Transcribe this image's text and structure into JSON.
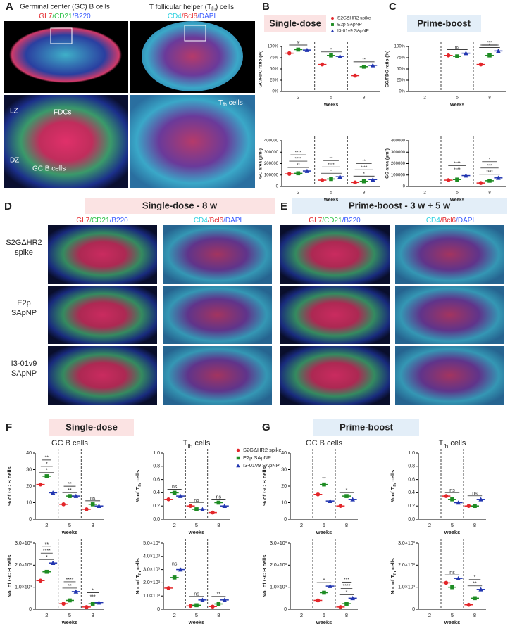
{
  "panel_labels": [
    "A",
    "B",
    "C",
    "D",
    "E",
    "F",
    "G"
  ],
  "panel_a": {
    "left_title": "Germinal center (GC) B cells",
    "left_stain": [
      "GL7",
      "/CD21",
      "/B220"
    ],
    "right_title": [
      "T follicular helper (T",
      "fh",
      ") cells"
    ],
    "right_stain": [
      "CD4",
      "/Bcl6",
      "/DAPI"
    ],
    "zones": [
      "LZ",
      "DZ"
    ],
    "labels": [
      "FDCs",
      "GC B cells"
    ],
    "tfh_label": [
      "T",
      "fh",
      " cells"
    ]
  },
  "sections": {
    "B": "Single-dose",
    "C": "Prime-boost",
    "F": "Single-dose",
    "G": "Prime-boost"
  },
  "panel_d": {
    "title": "Single-dose - 8 w"
  },
  "panel_e": {
    "title": "Prime-boost - 3 w + 5 w"
  },
  "row_labels": [
    [
      "S2GΔHR2",
      "spike"
    ],
    [
      "E2p",
      "SApNP"
    ],
    [
      "I3-01v9",
      "SApNP"
    ]
  ],
  "stain_headers": {
    "gc": [
      "GL7",
      "/CD21",
      "/B220"
    ],
    "tfh": [
      "CD4",
      "/Bcl6",
      "/DAPI"
    ]
  },
  "groups": [
    {
      "name": "S2GΔHR2 spike",
      "color": "#e3262a"
    },
    {
      "name": "E2p SApNP",
      "color": "#1e8c23"
    },
    {
      "name": "I3-01v9 SApNP",
      "color": "#2236b0"
    }
  ],
  "chart_data": [
    {
      "type": "dot",
      "ylabel": "GC/FDC ratio (%)",
      "xlabel": "Weeks",
      "categories": [
        "2",
        "5",
        "8"
      ],
      "series": [
        {
          "values": [
            85,
            60,
            35
          ]
        },
        {
          "values": [
            93,
            80,
            55
          ]
        },
        {
          "values": [
            92,
            78,
            58
          ]
        }
      ],
      "ylim": [
        0,
        100
      ],
      "yticks": [
        {
          "value": 0,
          "label": "0%"
        },
        {
          "value": 25,
          "label": "25%"
        },
        {
          "value": 50,
          "label": "50%"
        },
        {
          "value": 75,
          "label": "75%"
        },
        {
          "value": 100,
          "label": "100%"
        }
      ],
      "annotations": [
        [
          "*",
          "**"
        ],
        [
          "*"
        ],
        [
          "**"
        ]
      ]
    },
    {
      "type": "dot",
      "ylabel": "GC area (µm²)",
      "xlabel": "Weeks",
      "categories": [
        "2",
        "5",
        "8"
      ],
      "series": [
        {
          "values": [
            110000,
            55000,
            35000
          ]
        },
        {
          "values": [
            115000,
            65000,
            45000
          ]
        },
        {
          "values": [
            135000,
            85000,
            60000
          ]
        }
      ],
      "ylim": [
        0,
        400000
      ],
      "yticks": [
        0,
        100000,
        200000,
        300000,
        400000
      ],
      "annotations": [
        [
          "**",
          "****",
          "****"
        ],
        [
          "**",
          "****",
          "**"
        ],
        [
          "*",
          "****",
          "**"
        ]
      ]
    },
    {
      "type": "dot",
      "ylabel": "GC/FDC ratio (%)",
      "xlabel": "Weeks",
      "categories": [
        "2",
        "5",
        "8"
      ],
      "series": [
        {
          "values": [
            null,
            80,
            60
          ]
        },
        {
          "values": [
            null,
            78,
            80
          ]
        },
        {
          "values": [
            null,
            85,
            90
          ]
        }
      ],
      "ylim": [
        0,
        100
      ],
      "yticks": [
        {
          "value": 0,
          "label": "0%"
        },
        {
          "value": 25,
          "label": "25%"
        },
        {
          "value": 50,
          "label": "50%"
        },
        {
          "value": 75,
          "label": "75%"
        },
        {
          "value": 100,
          "label": "100%"
        }
      ],
      "annotations": [
        [],
        [
          "ns"
        ],
        [
          "*",
          "***",
          "*"
        ]
      ]
    },
    {
      "type": "dot",
      "ylabel": "GC area (µm²)",
      "xlabel": "Weeks",
      "categories": [
        "2",
        "5",
        "8"
      ],
      "series": [
        {
          "values": [
            null,
            55000,
            30000
          ]
        },
        {
          "values": [
            null,
            60000,
            50000
          ]
        },
        {
          "values": [
            null,
            95000,
            75000
          ]
        }
      ],
      "ylim": [
        0,
        400000
      ],
      "yticks": [
        0,
        100000,
        200000,
        300000,
        400000
      ],
      "annotations": [
        [],
        [
          "****",
          "****"
        ],
        [
          "****",
          "***",
          "*"
        ]
      ]
    },
    {
      "type": "dot",
      "title": "GC B cells",
      "ylabel": "% of GC B cells",
      "xlabel": "weeks",
      "categories": [
        "2",
        "5",
        "8"
      ],
      "series": [
        {
          "values": [
            21,
            9,
            6
          ]
        },
        {
          "values": [
            26,
            14,
            9
          ]
        },
        {
          "values": [
            16,
            14,
            8
          ]
        }
      ],
      "ylim": [
        0,
        40
      ],
      "yticks": [
        0,
        10,
        20,
        30,
        40
      ],
      "annotations": [
        [
          "*",
          "*",
          "**"
        ],
        [
          "**",
          "**"
        ],
        [
          "ns"
        ]
      ]
    },
    {
      "type": "dot",
      "title": [
        "T",
        "fh",
        " cells"
      ],
      "ylabel": [
        "% of T",
        "fh",
        " cells"
      ],
      "xlabel": "weeks",
      "categories": [
        "2",
        "5",
        "8"
      ],
      "series": [
        {
          "values": [
            0.3,
            0.2,
            0.1
          ]
        },
        {
          "values": [
            0.4,
            0.15,
            0.25
          ]
        },
        {
          "values": [
            0.35,
            0.15,
            0.2
          ]
        }
      ],
      "ylim": [
        0,
        1
      ],
      "yticks": [
        {
          "value": 0,
          "label": "0.0"
        },
        0.2,
        0.4,
        0.6,
        0.8,
        {
          "value": 1,
          "label": "1.0"
        }
      ],
      "annotations": [
        [
          "ns"
        ],
        [
          "ns"
        ],
        [
          "ns"
        ]
      ]
    },
    {
      "type": "dot",
      "ylabel": "No. of GC B cells",
      "xlabel": "weeks",
      "categories": [
        "2",
        "5",
        "8"
      ],
      "series": [
        {
          "values": [
            1300,
            250,
            100
          ]
        },
        {
          "values": [
            1700,
            400,
            250
          ]
        },
        {
          "values": [
            2100,
            800,
            300
          ]
        }
      ],
      "ylim": [
        0,
        3000
      ],
      "yticks": [
        0,
        {
          "value": 1000,
          "label": "1.0×10³"
        },
        {
          "value": 2000,
          "label": "2.0×10³"
        },
        {
          "value": 3000,
          "label": "3.0×10³"
        }
      ],
      "annotations": [
        [
          "*",
          "****",
          "**"
        ],
        [
          "**",
          "****"
        ],
        [
          "***",
          "*"
        ]
      ]
    },
    {
      "type": "dot",
      "ylabel": [
        "No. of T",
        "fh",
        " cells"
      ],
      "xlabel": "weeks",
      "categories": [
        "2",
        "5",
        "8"
      ],
      "series": [
        {
          "values": [
            1600,
            250,
            200
          ]
        },
        {
          "values": [
            2400,
            300,
            400
          ]
        },
        {
          "values": [
            3000,
            700,
            700
          ]
        }
      ],
      "ylim": [
        0,
        5000
      ],
      "yticks": [
        0,
        {
          "value": 1000,
          "label": "1.0×10³"
        },
        {
          "value": 2000,
          "label": "2.0×10³"
        },
        {
          "value": 3000,
          "label": "3.0×10³"
        },
        {
          "value": 4000,
          "label": "4.0×10³"
        },
        {
          "value": 5000,
          "label": "5.0×10³"
        }
      ],
      "annotations": [
        [
          "ns"
        ],
        [
          "ns"
        ],
        [
          "**"
        ]
      ]
    },
    {
      "type": "dot",
      "title": "GC B cells",
      "ylabel": "% of GC B cells",
      "xlabel": "weeks",
      "categories": [
        "2",
        "5",
        "8"
      ],
      "series": [
        {
          "values": [
            null,
            15,
            8
          ]
        },
        {
          "values": [
            null,
            21,
            14
          ]
        },
        {
          "values": [
            null,
            11,
            12
          ]
        }
      ],
      "ylim": [
        0,
        40
      ],
      "yticks": [
        0,
        10,
        20,
        30,
        40
      ],
      "annotations": [
        [],
        [
          "**"
        ],
        [
          "*"
        ]
      ]
    },
    {
      "type": "dot",
      "title": [
        "T",
        "fh",
        " cells"
      ],
      "ylabel": [
        "% of T",
        "fh",
        " cells"
      ],
      "xlabel": "weeks",
      "categories": [
        "2",
        "5",
        "8"
      ],
      "series": [
        {
          "values": [
            null,
            0.35,
            0.2
          ]
        },
        {
          "values": [
            null,
            0.3,
            0.2
          ]
        },
        {
          "values": [
            null,
            0.25,
            0.3
          ]
        }
      ],
      "ylim": [
        0,
        1
      ],
      "yticks": [
        {
          "value": 0,
          "label": "0.0"
        },
        0.2,
        0.4,
        0.6,
        0.8,
        {
          "value": 1,
          "label": "1.0"
        }
      ],
      "annotations": [
        [],
        [
          "ns"
        ],
        [
          "ns"
        ]
      ]
    },
    {
      "type": "dot",
      "ylabel": "No. of GC B cells",
      "xlabel": "weeks",
      "categories": [
        "2",
        "5",
        "8"
      ],
      "series": [
        {
          "values": [
            null,
            400,
            100
          ]
        },
        {
          "values": [
            null,
            750,
            250
          ]
        },
        {
          "values": [
            null,
            1050,
            500
          ]
        }
      ],
      "ylim": [
        0,
        3000
      ],
      "yticks": [
        0,
        {
          "value": 1000,
          "label": "1.0×10³"
        },
        {
          "value": 2000,
          "label": "2.0×10³"
        },
        {
          "value": 3000,
          "label": "3.0×10³"
        }
      ],
      "annotations": [
        [],
        [
          "*"
        ],
        [
          "*",
          "****",
          "***"
        ]
      ]
    },
    {
      "type": "dot",
      "ylabel": [
        "No. of T",
        "fh",
        " cells"
      ],
      "xlabel": "weeks",
      "categories": [
        "2",
        "5",
        "8"
      ],
      "series": [
        {
          "values": [
            null,
            1200,
            200
          ]
        },
        {
          "values": [
            null,
            1000,
            500
          ]
        },
        {
          "values": [
            null,
            1400,
            900
          ]
        }
      ],
      "ylim": [
        0,
        3000
      ],
      "yticks": [
        0,
        {
          "value": 1000,
          "label": "1.0×10³"
        },
        {
          "value": 2000,
          "label": "2.0×10³"
        },
        {
          "value": 3000,
          "label": "3.0×10³"
        }
      ],
      "annotations": [
        [],
        [
          "ns"
        ],
        [
          "**",
          "*"
        ]
      ]
    }
  ]
}
